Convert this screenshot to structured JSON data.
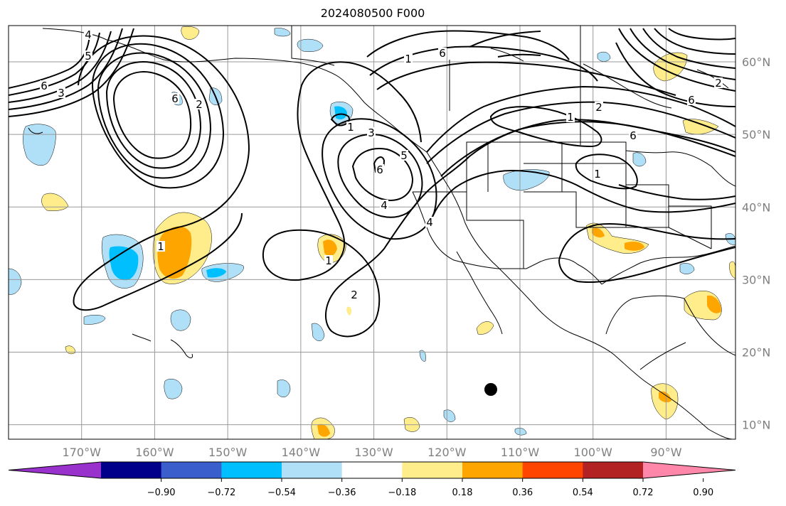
{
  "title": "2024080500 F000",
  "latitudes": [
    {
      "value": 10,
      "label": "10°N"
    },
    {
      "value": 20,
      "label": "20°N"
    },
    {
      "value": 30,
      "label": "30°N"
    },
    {
      "value": 40,
      "label": "40°N"
    },
    {
      "value": 50,
      "label": "50°N"
    },
    {
      "value": 60,
      "label": "60°N"
    }
  ],
  "longitudes": [
    {
      "value": -170,
      "label": "170°W"
    },
    {
      "value": -160,
      "label": "160°W"
    },
    {
      "value": -150,
      "label": "150°W"
    },
    {
      "value": -140,
      "label": "140°W"
    },
    {
      "value": -130,
      "label": "130°W"
    },
    {
      "value": -120,
      "label": "120°W"
    },
    {
      "value": -110,
      "label": "110°W"
    },
    {
      "value": -100,
      "label": "100°W"
    },
    {
      "value": -90,
      "label": "90°W"
    }
  ],
  "map_extent": {
    "lon_min": -180,
    "lon_max": -80.5,
    "lat_min": 8,
    "lat_max": 65
  },
  "colorbar": {
    "colors": [
      "#9932cc",
      "#00008b",
      "#3a5fcd",
      "#00bfff",
      "#b0e0f8",
      "#ffffff",
      "#ffec8b",
      "#ffa500",
      "#ff4500",
      "#b22222",
      "#ff88aa"
    ],
    "ticks": [
      {
        "value": -0.9,
        "label": "−0.90"
      },
      {
        "value": -0.72,
        "label": "−0.72"
      },
      {
        "value": -0.54,
        "label": "−0.54"
      },
      {
        "value": -0.36,
        "label": "−0.36"
      },
      {
        "value": -0.18,
        "label": "−0.18"
      },
      {
        "value": 0.18,
        "label": "0.18"
      },
      {
        "value": 0.36,
        "label": "0.36"
      },
      {
        "value": 0.54,
        "label": "0.54"
      },
      {
        "value": 0.72,
        "label": "0.72"
      },
      {
        "value": 0.9,
        "label": "0.90"
      }
    ]
  },
  "contour_labels": [
    "6",
    "3",
    "4",
    "5",
    "2",
    "1",
    "6",
    "1",
    "3",
    "5",
    "6",
    "4",
    "1",
    "2",
    "6",
    "1",
    "2",
    "1",
    "6",
    "2",
    "1",
    "4",
    "6"
  ],
  "marker_color": "#000000"
}
